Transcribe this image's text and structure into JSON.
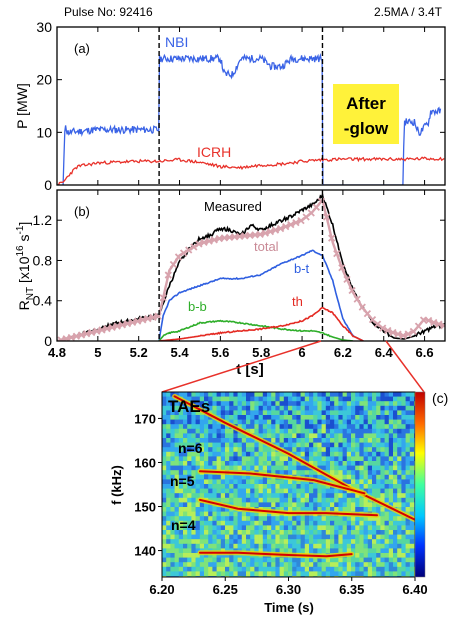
{
  "header": {
    "pulse": "Pulse No: 92416",
    "conditions": "2.5MA / 3.4T"
  },
  "afterglow_label": [
    "After",
    "-glow"
  ],
  "colors": {
    "nbi": "#3a63e6",
    "icrh": "#e8312a",
    "measured": "#000000",
    "total": "#d8a3ad",
    "bt": "#2f5fe0",
    "bb": "#2fae2a",
    "th": "#e42a22",
    "afterglow_box": "#fff23a",
    "zoom_lines": "#e8312a"
  },
  "chart_data": [
    {
      "type": "line",
      "panel": "(a)",
      "xlim": [
        4.8,
        6.7
      ],
      "ylim": [
        0,
        30
      ],
      "ylabel": "P [MW]",
      "xlabel": "",
      "yticks": [
        0,
        10,
        20,
        30
      ],
      "xticks": [
        4.8,
        5,
        5.2,
        5.4,
        5.6,
        5.8,
        6,
        6.2,
        6.4,
        6.6
      ],
      "vlines": [
        5.3,
        6.1
      ],
      "series": [
        {
          "name": "NBI",
          "x": [
            4.83,
            4.84,
            4.85,
            5.0,
            5.2,
            5.298,
            5.3,
            5.31,
            5.5,
            5.6,
            5.62,
            5.66,
            5.7,
            5.8,
            5.85,
            5.9,
            5.95,
            6.02,
            6.05,
            6.09,
            6.1,
            6.101,
            6.495,
            6.5,
            6.51,
            6.55,
            6.57,
            6.58,
            6.62,
            6.63,
            6.68
          ],
          "y": [
            0,
            12,
            10,
            10.5,
            10.5,
            10.5,
            24,
            24,
            24,
            24,
            21,
            21,
            24,
            24,
            22.5,
            22.5,
            24,
            24,
            24,
            24,
            24,
            0,
            0,
            12,
            12,
            12,
            10,
            10,
            12,
            14,
            14
          ]
        },
        {
          "name": "ICRH",
          "x": [
            4.8,
            4.83,
            4.86,
            4.9,
            5.0,
            5.2,
            5.3,
            5.4,
            5.5,
            5.6,
            5.7,
            5.8,
            5.9,
            6.0,
            6.1,
            6.2,
            6.3,
            6.4,
            6.5,
            6.6,
            6.7
          ],
          "y": [
            0,
            0.5,
            2,
            3.5,
            4.2,
            4.5,
            4.5,
            4.8,
            4.3,
            3.5,
            3.3,
            3.8,
            4.0,
            4.5,
            4.8,
            4.9,
            4.9,
            4.9,
            4.9,
            5.0,
            5.0
          ]
        }
      ]
    },
    {
      "type": "line",
      "panel": "(b)",
      "xlim": [
        4.8,
        6.7
      ],
      "ylim": [
        0,
        1.5
      ],
      "ylabel": "R_NT [x10^16 s^-1]",
      "xlabel": "t [s]",
      "yticks": [
        0,
        0.4,
        0.8,
        1.2
      ],
      "xticks": [
        4.8,
        5,
        5.2,
        5.4,
        5.6,
        5.8,
        6,
        6.2,
        6.4,
        6.6
      ],
      "vlines": [
        5.3,
        6.1
      ],
      "series": [
        {
          "name": "Measured",
          "x": [
            4.8,
            4.9,
            5.0,
            5.1,
            5.2,
            5.25,
            5.3,
            5.35,
            5.4,
            5.45,
            5.5,
            5.55,
            5.6,
            5.65,
            5.7,
            5.75,
            5.8,
            5.85,
            5.9,
            5.95,
            6.0,
            6.05,
            6.08,
            6.1,
            6.15,
            6.2,
            6.25,
            6.3,
            6.35,
            6.4,
            6.45,
            6.5,
            6.55,
            6.6,
            6.65,
            6.7
          ],
          "y": [
            0.0,
            0.06,
            0.12,
            0.18,
            0.22,
            0.24,
            0.25,
            0.55,
            0.78,
            0.92,
            1.02,
            1.05,
            1.12,
            1.1,
            1.05,
            1.15,
            1.1,
            1.15,
            1.2,
            1.24,
            1.3,
            1.35,
            1.4,
            1.45,
            1.15,
            0.78,
            0.5,
            0.32,
            0.18,
            0.1,
            0.03,
            0.02,
            0.05,
            0.1,
            0.14,
            0.16
          ]
        },
        {
          "name": "total",
          "x": [
            4.8,
            4.9,
            5.0,
            5.1,
            5.2,
            5.3,
            5.35,
            5.4,
            5.5,
            5.6,
            5.7,
            5.8,
            5.9,
            6.0,
            6.05,
            6.1,
            6.15,
            6.2,
            6.25,
            6.3,
            6.35,
            6.4,
            6.45,
            6.5,
            6.55,
            6.6,
            6.65,
            6.7
          ],
          "y": [
            0.0,
            0.05,
            0.1,
            0.15,
            0.2,
            0.25,
            0.7,
            0.85,
            0.97,
            1.02,
            1.04,
            1.06,
            1.12,
            1.2,
            1.28,
            1.4,
            0.98,
            0.7,
            0.48,
            0.32,
            0.2,
            0.12,
            0.08,
            0.05,
            0.1,
            0.22,
            0.18,
            0.15
          ]
        },
        {
          "name": "b-t",
          "x": [
            5.3,
            5.32,
            5.35,
            5.4,
            5.5,
            5.6,
            5.7,
            5.8,
            5.9,
            6.0,
            6.05,
            6.1,
            6.15,
            6.2,
            6.25,
            6.3
          ],
          "y": [
            0.0,
            0.25,
            0.4,
            0.48,
            0.55,
            0.62,
            0.62,
            0.66,
            0.77,
            0.85,
            0.9,
            0.85,
            0.6,
            0.22,
            0.05,
            0.0
          ]
        },
        {
          "name": "b-b",
          "x": [
            5.3,
            5.32,
            5.35,
            5.4,
            5.5,
            5.6,
            5.7,
            5.8,
            5.9,
            6.0,
            6.05,
            6.1,
            6.15,
            6.2,
            6.25
          ],
          "y": [
            0.0,
            0.05,
            0.08,
            0.1,
            0.18,
            0.2,
            0.18,
            0.15,
            0.12,
            0.1,
            0.1,
            0.08,
            0.04,
            0.01,
            0.0
          ]
        },
        {
          "name": "th",
          "x": [
            5.3,
            5.4,
            5.5,
            5.6,
            5.7,
            5.8,
            5.9,
            6.0,
            6.05,
            6.1,
            6.15,
            6.2,
            6.25,
            6.3
          ],
          "y": [
            0.0,
            0.02,
            0.05,
            0.08,
            0.1,
            0.12,
            0.15,
            0.2,
            0.25,
            0.33,
            0.28,
            0.15,
            0.05,
            0.0
          ]
        }
      ]
    },
    {
      "type": "heatmap",
      "panel": "(c)",
      "title": "TAEs",
      "xlim": [
        6.2,
        6.4
      ],
      "ylim": [
        134,
        176
      ],
      "xlabel": "Time (s)",
      "ylabel": "f (kHz)",
      "xticks": [
        6.2,
        6.25,
        6.3,
        6.35,
        6.4
      ],
      "yticks": [
        140,
        150,
        160,
        170
      ],
      "mode_labels": [
        "n=6",
        "n=5",
        "n=4"
      ],
      "modes": [
        {
          "name": "sweep",
          "x": [
            6.21,
            6.25,
            6.3,
            6.35,
            6.4
          ],
          "y": [
            175,
            169,
            162,
            154,
            147
          ]
        },
        {
          "name": "n=6",
          "x": [
            6.23,
            6.27,
            6.32,
            6.36
          ],
          "y": [
            158,
            157.5,
            156,
            153
          ]
        },
        {
          "name": "n=5",
          "x": [
            6.23,
            6.26,
            6.3,
            6.33,
            6.37
          ],
          "y": [
            151.5,
            149.5,
            148.5,
            148.5,
            148.0
          ]
        },
        {
          "name": "n=4",
          "x": [
            6.23,
            6.26,
            6.3,
            6.33,
            6.35
          ],
          "y": [
            139.5,
            139.5,
            139.0,
            138.7,
            139.2
          ]
        }
      ],
      "colorbar": {
        "scale": "log",
        "colors": [
          "#00007a",
          "#0033ff",
          "#00c8ff",
          "#40ff9f",
          "#ffff00",
          "#ff6a00",
          "#c00000"
        ]
      }
    }
  ],
  "panel_c_label": "(c)"
}
